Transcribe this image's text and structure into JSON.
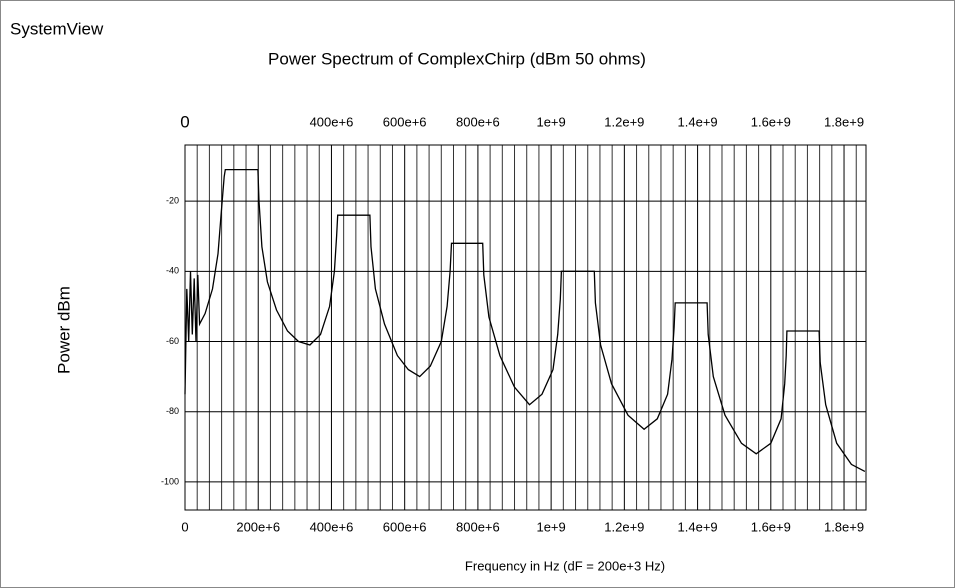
{
  "chart_data": {
    "type": "line",
    "app_label": "SystemView",
    "title": "Power Spectrum of ComplexChirp (dBm 50 ohms)",
    "y_label": "Power dBm",
    "x_label": "Frequency in Hz (dF = 200e+3 Hz)",
    "xlim": [
      0,
      1860000000.0
    ],
    "ylim": [
      -108,
      -4
    ],
    "xticks": [
      0,
      {
        "value": 200000000,
        "label": "200e+6"
      },
      {
        "value": 400000000,
        "label": "400e+6"
      },
      {
        "value": 600000000,
        "label": "600e+6"
      },
      {
        "value": 800000000,
        "label": "800e+6"
      },
      {
        "value": 1000000000,
        "label": "1e+9"
      },
      {
        "value": 1200000000,
        "label": "1.2e+9"
      },
      {
        "value": 1400000000,
        "label": "1.4e+9"
      },
      {
        "value": 1600000000,
        "label": "1.6e+9"
      },
      {
        "value": 1800000000,
        "label": "1.8e+9"
      }
    ],
    "top_xticks": [
      0,
      {
        "value": 400000000,
        "label": "400e+6"
      },
      {
        "value": 600000000,
        "label": "600e+6"
      },
      {
        "value": 800000000,
        "label": "800e+6"
      },
      {
        "value": 1000000000,
        "label": "1e+9"
      },
      {
        "value": 1200000000,
        "label": "1.2e+9"
      },
      {
        "value": 1400000000,
        "label": "1.4e+9"
      },
      {
        "value": 1600000000,
        "label": "1.6e+9"
      },
      {
        "value": 1800000000,
        "label": "1.8e+9"
      }
    ],
    "yticks": [
      -20,
      -40,
      -60,
      -80,
      -100
    ],
    "grid": true,
    "color": "#000000",
    "x": [
      0,
      5000000.0,
      10000000.0,
      15000000.0,
      20000000.0,
      25000000.0,
      30000000.0,
      35000000.0,
      40000000.0,
      55000000.0,
      75000000.0,
      90000000.0,
      100000000.0,
      107000000.0,
      110000000.0,
      199000000.0,
      202000000.0,
      210000000.0,
      225000000.0,
      250000000.0,
      280000000.0,
      310000000.0,
      341000000.0,
      370000000.0,
      395000000.0,
      408000000.0,
      414000000.0,
      417000000.0,
      505000000.0,
      508000000.0,
      520000000.0,
      545000000.0,
      580000000.0,
      610000000.0,
      641000000.0,
      670000000.0,
      700000000.0,
      716000000.0,
      724000000.0,
      728000000.0,
      813000000.0,
      816000000.0,
      830000000.0,
      860000000.0,
      900000000.0,
      941000000.0,
      975000000.0,
      1005000000.0,
      1018000000.0,
      1025000000.0,
      1028000000.0,
      1118000000.0,
      1121000000.0,
      1135000000.0,
      1165000000.0,
      1210000000.0,
      1254000000.0,
      1290000000.0,
      1318000000.0,
      1330000000.0,
      1336000000.0,
      1339000000.0,
      1426000000.0,
      1429000000.0,
      1443000000.0,
      1475000000.0,
      1520000000.0,
      1560000000.0,
      1600000000.0,
      1628000000.0,
      1638000000.0,
      1642000000.0,
      1644000000.0,
      1732000000.0,
      1735000000.0,
      1750000000.0,
      1780000000.0,
      1820000000.0,
      1857000000.0
    ],
    "values": [
      -75,
      -45,
      -60,
      -40,
      -58,
      -42,
      -60,
      -41,
      -55,
      -52,
      -45,
      -35,
      -22,
      -13,
      -11,
      -11,
      -20,
      -33,
      -43,
      -51,
      -57,
      -60,
      -61,
      -58,
      -50,
      -40,
      -30,
      -24,
      -24,
      -33,
      -45,
      -55,
      -64,
      -68,
      -70,
      -67,
      -60,
      -50,
      -40,
      -32,
      -32,
      -41,
      -53,
      -64,
      -73,
      -78,
      -75,
      -68,
      -58,
      -48,
      -40,
      -40,
      -49,
      -61,
      -72,
      -81,
      -85,
      -82,
      -75,
      -65,
      -56,
      -49,
      -49,
      -58,
      -70,
      -81,
      -89,
      -92,
      -89,
      -82,
      -72,
      -64,
      -57,
      -57,
      -66,
      -78,
      -89,
      -95,
      -97
    ]
  }
}
